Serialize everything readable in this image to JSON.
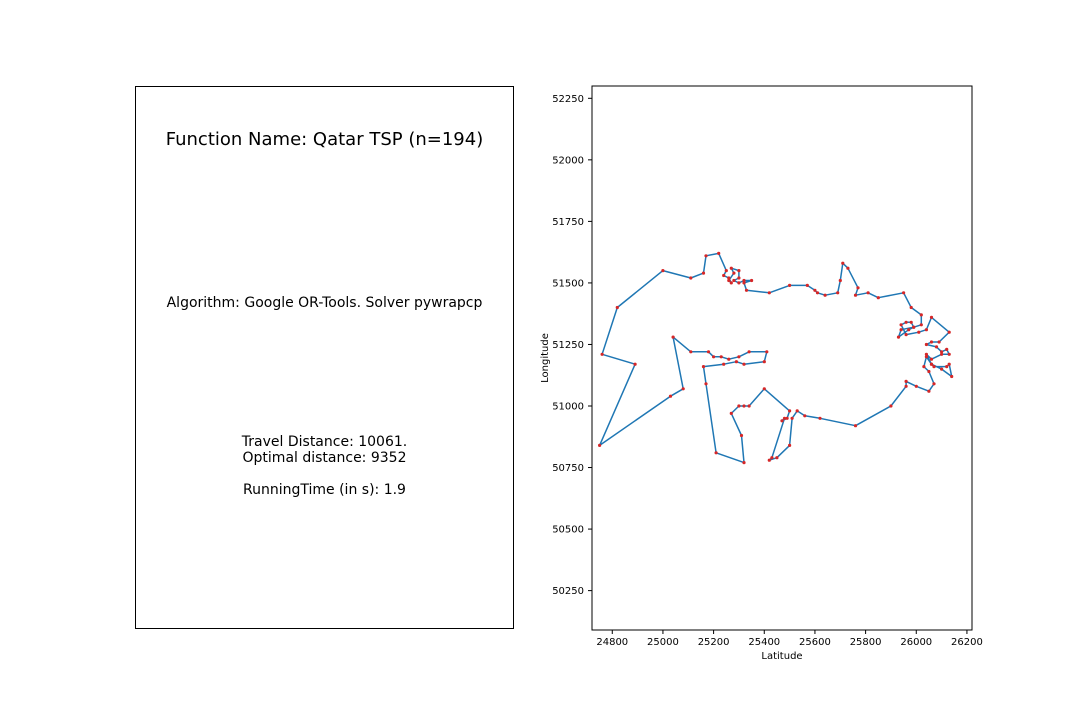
{
  "info": {
    "function_name": "Function Name: Qatar TSP (n=194)",
    "algorithm": "Algorithm: Google OR-Tools. Solver pywrapcp",
    "travel_distance": "Travel Distance: 10061.",
    "optimal_distance": "Optimal distance: 9352",
    "running_time": "RunningTime (in s): 1.9"
  },
  "chart_data": {
    "type": "line",
    "xlabel": "Latitude",
    "ylabel": "Longitude",
    "xlim": [
      24720,
      26220
    ],
    "ylim": [
      50090,
      52300
    ],
    "xticks": [
      24800,
      25000,
      25200,
      25400,
      25600,
      25800,
      26000,
      26200
    ],
    "yticks": [
      50250,
      50500,
      50750,
      51000,
      51250,
      51500,
      51750,
      52000,
      52250
    ],
    "line_color": "#1f77b4",
    "marker_color": "#d62728",
    "tour": [
      [
        24750,
        50840
      ],
      [
        24890,
        51170
      ],
      [
        24760,
        51210
      ],
      [
        24820,
        51400
      ],
      [
        25000,
        51550
      ],
      [
        25110,
        51520
      ],
      [
        25160,
        51540
      ],
      [
        25170,
        51610
      ],
      [
        25220,
        51620
      ],
      [
        25250,
        51550
      ],
      [
        25240,
        51530
      ],
      [
        25260,
        51520
      ],
      [
        25270,
        51500
      ],
      [
        25260,
        51510
      ],
      [
        25280,
        51540
      ],
      [
        25270,
        51560
      ],
      [
        25300,
        51550
      ],
      [
        25300,
        51520
      ],
      [
        25280,
        51510
      ],
      [
        25300,
        51500
      ],
      [
        25320,
        51510
      ],
      [
        25350,
        51510
      ],
      [
        25320,
        51500
      ],
      [
        25330,
        51470
      ],
      [
        25420,
        51460
      ],
      [
        25500,
        51490
      ],
      [
        25570,
        51490
      ],
      [
        25600,
        51470
      ],
      [
        25610,
        51460
      ],
      [
        25640,
        51450
      ],
      [
        25690,
        51460
      ],
      [
        25700,
        51510
      ],
      [
        25710,
        51580
      ],
      [
        25730,
        51560
      ],
      [
        25770,
        51480
      ],
      [
        25760,
        51450
      ],
      [
        25810,
        51460
      ],
      [
        25850,
        51440
      ],
      [
        25950,
        51460
      ],
      [
        25980,
        51400
      ],
      [
        26020,
        51370
      ],
      [
        26020,
        51330
      ],
      [
        25990,
        51320
      ],
      [
        25940,
        51310
      ],
      [
        25930,
        51280
      ],
      [
        25970,
        51310
      ],
      [
        25990,
        51320
      ],
      [
        25980,
        51340
      ],
      [
        25960,
        51340
      ],
      [
        25940,
        51330
      ],
      [
        25960,
        51290
      ],
      [
        26010,
        51300
      ],
      [
        26040,
        51310
      ],
      [
        26060,
        51360
      ],
      [
        26130,
        51300
      ],
      [
        26090,
        51260
      ],
      [
        26060,
        51260
      ],
      [
        26040,
        51250
      ],
      [
        26080,
        51240
      ],
      [
        26100,
        51220
      ],
      [
        26120,
        51230
      ],
      [
        26130,
        51210
      ],
      [
        26100,
        51210
      ],
      [
        26060,
        51190
      ],
      [
        26040,
        51210
      ],
      [
        26060,
        51170
      ],
      [
        26070,
        51160
      ],
      [
        26120,
        51160
      ],
      [
        26130,
        51170
      ],
      [
        26140,
        51120
      ],
      [
        26100,
        51150
      ],
      [
        26060,
        51170
      ],
      [
        26040,
        51200
      ],
      [
        26030,
        51160
      ],
      [
        26050,
        51140
      ],
      [
        26070,
        51090
      ],
      [
        26050,
        51060
      ],
      [
        26000,
        51080
      ],
      [
        25960,
        51100
      ],
      [
        25960,
        51080
      ],
      [
        25900,
        51000
      ],
      [
        25760,
        50920
      ],
      [
        25620,
        50950
      ],
      [
        25560,
        50960
      ],
      [
        25530,
        50980
      ],
      [
        25510,
        50950
      ],
      [
        25500,
        50840
      ],
      [
        25450,
        50790
      ],
      [
        25420,
        50780
      ],
      [
        25430,
        50790
      ],
      [
        25480,
        50950
      ],
      [
        25470,
        50940
      ],
      [
        25490,
        50950
      ],
      [
        25500,
        50980
      ],
      [
        25400,
        51070
      ],
      [
        25340,
        51000
      ],
      [
        25320,
        51000
      ],
      [
        25300,
        51000
      ],
      [
        25270,
        50970
      ],
      [
        25310,
        50880
      ],
      [
        25320,
        50770
      ],
      [
        25210,
        50810
      ],
      [
        25170,
        51090
      ],
      [
        25160,
        51160
      ],
      [
        25240,
        51170
      ],
      [
        25290,
        51180
      ],
      [
        25320,
        51170
      ],
      [
        25400,
        51180
      ],
      [
        25410,
        51220
      ],
      [
        25340,
        51220
      ],
      [
        25300,
        51200
      ],
      [
        25260,
        51190
      ],
      [
        25230,
        51200
      ],
      [
        25200,
        51200
      ],
      [
        25180,
        51220
      ],
      [
        25110,
        51220
      ],
      [
        25040,
        51280
      ],
      [
        25080,
        51070
      ],
      [
        25030,
        51040
      ],
      [
        24750,
        50840
      ]
    ]
  }
}
